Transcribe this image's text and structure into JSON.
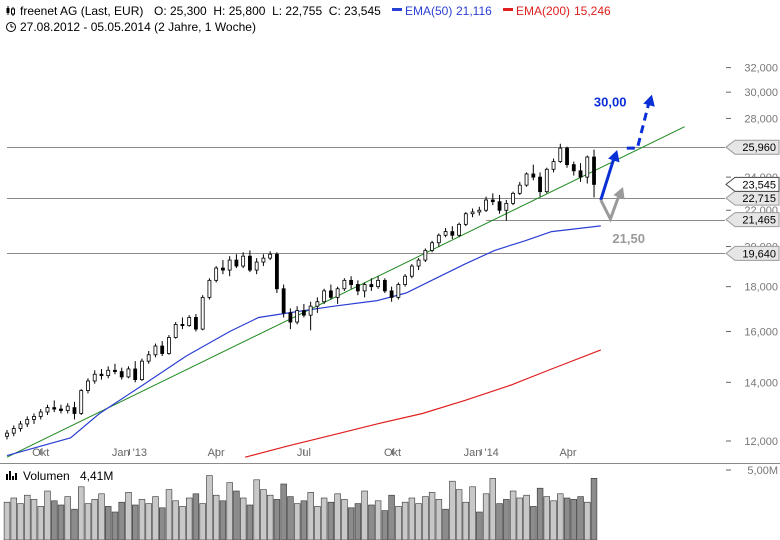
{
  "header": {
    "instrument": "freenet AG (Last, EUR)",
    "ohlc": "O: 25,300  H: 25,800  L: 22,755  C: 23,545",
    "ema50_label": "EMA(50)",
    "ema50_value": "21,116",
    "ema200_label": "EMA(200)",
    "ema200_value": "15,246",
    "period": "27.08.2012 - 05.05.2014 (2 Jahre, 1 Woche)"
  },
  "colors": {
    "candle": "#000000",
    "ema50": "#2a3fd4",
    "ema200": "#e02020",
    "trend": "#1f8a1f",
    "forecast_up": "#0a2fd6",
    "forecast_alt": "#9a9a9a",
    "grid": "#8a8a8a",
    "volume": "#c8c8c8"
  },
  "chart_data": {
    "type": "candlestick",
    "x_ticks": [
      "Okt",
      "Jan '13",
      "Apr",
      "Jul",
      "Okt",
      "Jan '14",
      "Apr"
    ],
    "x_tick_dates": [
      "2012-10-01",
      "2013-01-01",
      "2013-04-01",
      "2013-07-01",
      "2013-10-01",
      "2014-01-01",
      "2014-04-01"
    ],
    "x_range": [
      "2012-08-27",
      "2014-05-05"
    ],
    "y_ticks": [
      "12,000",
      "14,000",
      "16,000",
      "18,000",
      "20,000",
      "22,000",
      "24,000",
      "28,000",
      "30,000",
      "32,000"
    ],
    "y_tick_values": [
      12,
      14,
      16,
      18,
      20,
      22,
      24,
      28,
      30,
      32
    ],
    "y_scale": "log",
    "ylim": [
      11.5,
      32
    ],
    "grid": false,
    "candles": [
      {
        "date": "2012-08-27",
        "o": 12.15,
        "h": 12.35,
        "l": 12.05,
        "c": 12.25
      },
      {
        "date": "2012-09-03",
        "o": 12.25,
        "h": 12.5,
        "l": 12.15,
        "c": 12.4
      },
      {
        "date": "2012-09-10",
        "o": 12.4,
        "h": 12.65,
        "l": 12.3,
        "c": 12.55
      },
      {
        "date": "2012-09-17",
        "o": 12.55,
        "h": 12.8,
        "l": 12.45,
        "c": 12.7
      },
      {
        "date": "2012-09-24",
        "o": 12.7,
        "h": 12.9,
        "l": 12.55,
        "c": 12.8
      },
      {
        "date": "2012-10-01",
        "o": 12.8,
        "h": 13.05,
        "l": 12.7,
        "c": 12.95
      },
      {
        "date": "2012-10-08",
        "o": 12.95,
        "h": 13.2,
        "l": 12.85,
        "c": 13.1
      },
      {
        "date": "2012-10-15",
        "o": 13.1,
        "h": 13.35,
        "l": 12.95,
        "c": 13.05
      },
      {
        "date": "2012-10-22",
        "o": 13.05,
        "h": 13.2,
        "l": 12.9,
        "c": 13.0
      },
      {
        "date": "2012-10-29",
        "o": 13.0,
        "h": 13.25,
        "l": 12.9,
        "c": 13.15
      },
      {
        "date": "2012-11-05",
        "o": 13.1,
        "h": 13.3,
        "l": 12.7,
        "c": 12.9
      },
      {
        "date": "2012-11-12",
        "o": 12.9,
        "h": 13.75,
        "l": 12.85,
        "c": 13.7
      },
      {
        "date": "2012-11-19",
        "o": 13.7,
        "h": 14.15,
        "l": 13.6,
        "c": 14.05
      },
      {
        "date": "2012-11-26",
        "o": 14.05,
        "h": 14.45,
        "l": 13.95,
        "c": 14.3
      },
      {
        "date": "2012-12-03",
        "o": 14.3,
        "h": 14.5,
        "l": 14.1,
        "c": 14.25
      },
      {
        "date": "2012-12-10",
        "o": 14.25,
        "h": 14.6,
        "l": 14.15,
        "c": 14.45
      },
      {
        "date": "2012-12-17",
        "o": 14.45,
        "h": 14.7,
        "l": 14.3,
        "c": 14.4
      },
      {
        "date": "2012-12-24",
        "o": 14.4,
        "h": 14.55,
        "l": 14.1,
        "c": 14.2
      },
      {
        "date": "2012-12-31",
        "o": 14.2,
        "h": 14.6,
        "l": 14.15,
        "c": 14.5
      },
      {
        "date": "2013-01-07",
        "o": 14.5,
        "h": 14.8,
        "l": 14.0,
        "c": 14.1
      },
      {
        "date": "2013-01-14",
        "o": 14.1,
        "h": 14.9,
        "l": 14.05,
        "c": 14.8
      },
      {
        "date": "2013-01-21",
        "o": 14.8,
        "h": 15.2,
        "l": 14.7,
        "c": 15.05
      },
      {
        "date": "2013-01-28",
        "o": 15.05,
        "h": 15.5,
        "l": 14.95,
        "c": 15.4
      },
      {
        "date": "2013-02-04",
        "o": 15.4,
        "h": 15.6,
        "l": 15.0,
        "c": 15.1
      },
      {
        "date": "2013-02-11",
        "o": 15.1,
        "h": 15.85,
        "l": 15.05,
        "c": 15.75
      },
      {
        "date": "2013-02-18",
        "o": 15.75,
        "h": 16.4,
        "l": 15.7,
        "c": 16.3
      },
      {
        "date": "2013-02-25",
        "o": 16.3,
        "h": 16.6,
        "l": 16.1,
        "c": 16.25
      },
      {
        "date": "2013-03-04",
        "o": 16.25,
        "h": 16.7,
        "l": 16.2,
        "c": 16.6
      },
      {
        "date": "2013-03-11",
        "o": 16.6,
        "h": 16.75,
        "l": 16.0,
        "c": 16.1
      },
      {
        "date": "2013-03-18",
        "o": 16.1,
        "h": 17.6,
        "l": 16.05,
        "c": 17.5
      },
      {
        "date": "2013-03-25",
        "o": 17.5,
        "h": 18.4,
        "l": 17.4,
        "c": 18.3
      },
      {
        "date": "2013-04-01",
        "o": 18.3,
        "h": 19.0,
        "l": 18.2,
        "c": 18.9
      },
      {
        "date": "2013-04-08",
        "o": 18.9,
        "h": 19.3,
        "l": 18.6,
        "c": 18.8
      },
      {
        "date": "2013-04-15",
        "o": 18.8,
        "h": 19.5,
        "l": 18.5,
        "c": 19.3
      },
      {
        "date": "2013-04-22",
        "o": 19.3,
        "h": 19.6,
        "l": 18.9,
        "c": 19.0
      },
      {
        "date": "2013-04-29",
        "o": 19.0,
        "h": 19.7,
        "l": 18.9,
        "c": 19.5
      },
      {
        "date": "2013-05-06",
        "o": 19.5,
        "h": 19.8,
        "l": 18.7,
        "c": 18.8
      },
      {
        "date": "2013-05-13",
        "o": 18.8,
        "h": 19.4,
        "l": 18.6,
        "c": 19.2
      },
      {
        "date": "2013-05-20",
        "o": 19.2,
        "h": 19.6,
        "l": 19.0,
        "c": 19.4
      },
      {
        "date": "2013-05-27",
        "o": 19.4,
        "h": 19.75,
        "l": 19.3,
        "c": 19.6
      },
      {
        "date": "2013-06-03",
        "o": 19.6,
        "h": 19.7,
        "l": 17.7,
        "c": 17.9
      },
      {
        "date": "2013-06-10",
        "o": 17.9,
        "h": 18.1,
        "l": 16.6,
        "c": 16.8
      },
      {
        "date": "2013-06-17",
        "o": 16.8,
        "h": 17.0,
        "l": 16.1,
        "c": 16.4
      },
      {
        "date": "2013-06-24",
        "o": 16.4,
        "h": 17.1,
        "l": 16.3,
        "c": 16.9
      },
      {
        "date": "2013-07-01",
        "o": 16.9,
        "h": 17.2,
        "l": 16.6,
        "c": 16.7
      },
      {
        "date": "2013-07-08",
        "o": 16.7,
        "h": 17.3,
        "l": 16.05,
        "c": 17.1
      },
      {
        "date": "2013-07-15",
        "o": 17.1,
        "h": 17.5,
        "l": 16.8,
        "c": 17.3
      },
      {
        "date": "2013-07-22",
        "o": 17.3,
        "h": 17.9,
        "l": 17.2,
        "c": 17.8
      },
      {
        "date": "2013-07-29",
        "o": 17.8,
        "h": 18.1,
        "l": 17.4,
        "c": 17.5
      },
      {
        "date": "2013-08-05",
        "o": 17.5,
        "h": 18.0,
        "l": 17.2,
        "c": 17.9
      },
      {
        "date": "2013-08-12",
        "o": 17.9,
        "h": 18.4,
        "l": 17.8,
        "c": 18.3
      },
      {
        "date": "2013-08-19",
        "o": 18.3,
        "h": 18.5,
        "l": 17.9,
        "c": 18.1
      },
      {
        "date": "2013-08-26",
        "o": 18.1,
        "h": 18.3,
        "l": 17.6,
        "c": 17.8
      },
      {
        "date": "2013-09-02",
        "o": 17.8,
        "h": 18.2,
        "l": 17.5,
        "c": 18.1
      },
      {
        "date": "2013-09-09",
        "o": 18.1,
        "h": 18.4,
        "l": 17.8,
        "c": 18.0
      },
      {
        "date": "2013-09-16",
        "o": 18.0,
        "h": 18.5,
        "l": 17.9,
        "c": 18.3
      },
      {
        "date": "2013-09-23",
        "o": 18.3,
        "h": 18.4,
        "l": 17.7,
        "c": 17.8
      },
      {
        "date": "2013-09-30",
        "o": 17.8,
        "h": 18.0,
        "l": 17.3,
        "c": 17.5
      },
      {
        "date": "2013-10-07",
        "o": 17.5,
        "h": 18.2,
        "l": 17.4,
        "c": 18.1
      },
      {
        "date": "2013-10-14",
        "o": 18.1,
        "h": 18.6,
        "l": 18.0,
        "c": 18.5
      },
      {
        "date": "2013-10-21",
        "o": 18.5,
        "h": 19.1,
        "l": 18.4,
        "c": 19.0
      },
      {
        "date": "2013-10-28",
        "o": 19.0,
        "h": 19.4,
        "l": 18.8,
        "c": 19.3
      },
      {
        "date": "2013-11-04",
        "o": 19.3,
        "h": 19.9,
        "l": 19.2,
        "c": 19.8
      },
      {
        "date": "2013-11-11",
        "o": 19.8,
        "h": 20.3,
        "l": 19.7,
        "c": 20.2
      },
      {
        "date": "2013-11-18",
        "o": 20.2,
        "h": 20.7,
        "l": 20.0,
        "c": 20.6
      },
      {
        "date": "2013-11-25",
        "o": 20.6,
        "h": 21.0,
        "l": 20.5,
        "c": 20.8
      },
      {
        "date": "2013-12-02",
        "o": 20.8,
        "h": 21.1,
        "l": 20.4,
        "c": 20.6
      },
      {
        "date": "2013-12-09",
        "o": 20.6,
        "h": 21.3,
        "l": 20.5,
        "c": 21.2
      },
      {
        "date": "2013-12-16",
        "o": 21.2,
        "h": 21.9,
        "l": 21.1,
        "c": 21.8
      },
      {
        "date": "2013-12-23",
        "o": 21.8,
        "h": 22.1,
        "l": 21.6,
        "c": 21.9
      },
      {
        "date": "2013-12-30",
        "o": 21.9,
        "h": 22.2,
        "l": 21.7,
        "c": 22.0
      },
      {
        "date": "2014-01-06",
        "o": 22.0,
        "h": 22.8,
        "l": 21.9,
        "c": 22.6
      },
      {
        "date": "2014-01-13",
        "o": 22.6,
        "h": 23.0,
        "l": 22.3,
        "c": 22.5
      },
      {
        "date": "2014-01-20",
        "o": 22.5,
        "h": 22.9,
        "l": 21.8,
        "c": 22.0
      },
      {
        "date": "2014-01-27",
        "o": 22.0,
        "h": 22.6,
        "l": 21.4,
        "c": 22.4
      },
      {
        "date": "2014-02-03",
        "o": 22.4,
        "h": 23.1,
        "l": 22.3,
        "c": 23.0
      },
      {
        "date": "2014-02-10",
        "o": 23.0,
        "h": 23.7,
        "l": 22.9,
        "c": 23.5
      },
      {
        "date": "2014-02-17",
        "o": 23.5,
        "h": 24.3,
        "l": 23.4,
        "c": 24.2
      },
      {
        "date": "2014-02-24",
        "o": 24.2,
        "h": 24.8,
        "l": 23.8,
        "c": 24.0
      },
      {
        "date": "2014-03-03",
        "o": 24.0,
        "h": 24.3,
        "l": 22.8,
        "c": 23.1
      },
      {
        "date": "2014-03-10",
        "o": 23.1,
        "h": 24.6,
        "l": 23.0,
        "c": 24.5
      },
      {
        "date": "2014-03-17",
        "o": 24.5,
        "h": 25.2,
        "l": 24.3,
        "c": 25.0
      },
      {
        "date": "2014-03-24",
        "o": 25.0,
        "h": 26.2,
        "l": 24.9,
        "c": 25.9
      },
      {
        "date": "2014-03-31",
        "o": 25.9,
        "h": 26.0,
        "l": 24.6,
        "c": 24.8
      },
      {
        "date": "2014-04-07",
        "o": 24.8,
        "h": 25.0,
        "l": 24.1,
        "c": 24.4
      },
      {
        "date": "2014-04-14",
        "o": 24.4,
        "h": 24.9,
        "l": 23.7,
        "c": 24.0
      },
      {
        "date": "2014-04-21",
        "o": 24.0,
        "h": 25.4,
        "l": 23.6,
        "c": 25.3
      },
      {
        "date": "2014-04-28",
        "o": 25.3,
        "h": 25.8,
        "l": 22.755,
        "c": 23.545
      }
    ],
    "ema50": {
      "name": "EMA(50)",
      "points": [
        [
          "2012-08-27",
          11.55
        ],
        [
          "2012-11-01",
          12.1
        ],
        [
          "2012-12-01",
          12.9
        ],
        [
          "2013-01-15",
          13.9
        ],
        [
          "2013-03-01",
          15.0
        ],
        [
          "2013-04-15",
          16.0
        ],
        [
          "2013-05-15",
          16.6
        ],
        [
          "2013-06-15",
          16.8
        ],
        [
          "2013-08-01",
          17.1
        ],
        [
          "2013-09-15",
          17.35
        ],
        [
          "2013-10-15",
          17.7
        ],
        [
          "2013-11-15",
          18.4
        ],
        [
          "2013-12-15",
          19.1
        ],
        [
          "2014-01-15",
          19.8
        ],
        [
          "2014-02-15",
          20.3
        ],
        [
          "2014-03-15",
          20.8
        ],
        [
          "2014-05-05",
          21.116
        ]
      ]
    },
    "ema200": {
      "name": "EMA(200)",
      "points": [
        [
          "2013-05-01",
          11.5
        ],
        [
          "2013-06-15",
          11.85
        ],
        [
          "2013-08-01",
          12.2
        ],
        [
          "2013-09-15",
          12.55
        ],
        [
          "2013-11-01",
          12.9
        ],
        [
          "2013-12-15",
          13.35
        ],
        [
          "2014-02-01",
          13.9
        ],
        [
          "2014-03-15",
          14.5
        ],
        [
          "2014-05-05",
          15.246
        ]
      ]
    },
    "horizontal_lines": [
      {
        "value": 25.96,
        "label": "25,960",
        "from": "2012-08-27"
      },
      {
        "value": 22.715,
        "label": "22,715",
        "from": "2012-08-27"
      },
      {
        "value": 21.465,
        "label": "21,465",
        "from": "2014-01-06"
      },
      {
        "value": 19.64,
        "label": "19,640",
        "from": "2012-08-27"
      }
    ],
    "last_price_label": {
      "value": 23.545,
      "label": "23,545"
    },
    "trendline": [
      [
        "2012-08-27",
        11.5
      ],
      [
        "2014-07-31",
        27.4
      ]
    ],
    "forecast_up": {
      "label": "30,00",
      "path": [
        [
          "2014-05-05",
          22.6
        ],
        [
          "2014-05-20",
          25.5
        ]
      ],
      "dashed_path": [
        [
          "2014-06-01",
          25.9
        ],
        [
          "2014-06-12",
          25.9
        ],
        [
          "2014-06-25",
          29.5
        ]
      ]
    },
    "forecast_alt": {
      "label": "21,50",
      "path": [
        [
          "2014-05-05",
          22.6
        ],
        [
          "2014-05-15",
          21.5
        ],
        [
          "2014-05-26",
          23.2
        ]
      ]
    },
    "volume": {
      "label": "Volumen",
      "last": "4,41M",
      "ylim": [
        0,
        5.0
      ],
      "y_ticks": [
        "5,00M"
      ],
      "y_tick_values": [
        5.0
      ],
      "values": [
        2.7,
        3.0,
        2.6,
        3.2,
        2.9,
        2.4,
        3.5,
        2.8,
        2.5,
        3.1,
        2.2,
        3.8,
        2.6,
        2.9,
        3.3,
        2.4,
        2.0,
        2.7,
        3.4,
        2.5,
        2.9,
        2.6,
        3.1,
        2.3,
        3.6,
        2.8,
        2.4,
        3.0,
        3.3,
        2.6,
        4.6,
        3.2,
        2.8,
        4.1,
        3.5,
        3.0,
        2.5,
        4.3,
        3.6,
        3.2,
        2.9,
        4.0,
        3.1,
        2.6,
        2.8,
        3.4,
        2.4,
        3.0,
        2.7,
        3.3,
        2.9,
        2.3,
        2.6,
        3.5,
        2.5,
        2.8,
        2.1,
        3.2,
        2.4,
        2.7,
        3.0,
        2.6,
        3.1,
        3.4,
        2.9,
        2.2,
        4.2,
        3.6,
        2.7,
        3.8,
        2.0,
        3.3,
        4.4,
        2.6,
        2.9,
        3.5,
        3.0,
        3.2,
        2.4,
        3.7,
        3.1,
        2.8,
        3.3,
        3.0,
        2.9,
        3.1,
        2.7,
        4.41
      ],
      "dark": [
        false,
        false,
        false,
        false,
        false,
        false,
        false,
        true,
        true,
        false,
        true,
        false,
        false,
        false,
        false,
        true,
        true,
        true,
        false,
        true,
        false,
        false,
        false,
        true,
        false,
        false,
        false,
        false,
        true,
        false,
        false,
        false,
        true,
        false,
        true,
        false,
        true,
        false,
        false,
        false,
        true,
        true,
        true,
        false,
        true,
        false,
        false,
        false,
        true,
        false,
        false,
        true,
        true,
        false,
        true,
        false,
        true,
        true,
        false,
        false,
        false,
        false,
        false,
        false,
        false,
        true,
        false,
        false,
        false,
        false,
        true,
        false,
        false,
        true,
        true,
        false,
        false,
        false,
        true,
        true,
        false,
        false,
        false,
        true,
        true,
        true,
        false,
        true
      ]
    }
  }
}
